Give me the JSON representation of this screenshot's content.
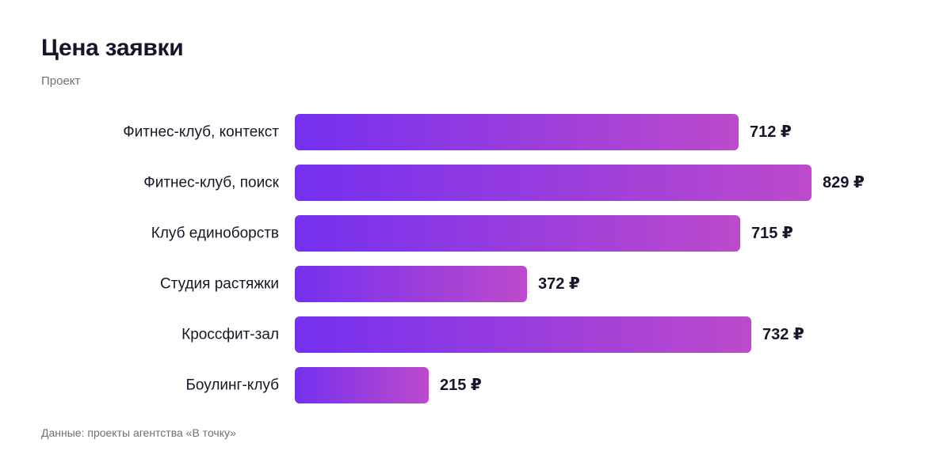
{
  "title": "Цена заявки",
  "subtitle": "Проект",
  "footnote": "Данные: проекты агентства «В точку»",
  "colors": {
    "bar_start": "#7530ef",
    "bar_end": "#bc4acb",
    "text": "#16162a",
    "muted": "#707070"
  },
  "chart_data": {
    "type": "bar",
    "orientation": "horizontal",
    "categories": [
      "Фитнес-клуб, контекст",
      "Фитнес-клуб, поиск",
      "Клуб единоборств",
      "Студия растяжки",
      "Кроссфит-зал",
      "Боулинг-клуб"
    ],
    "values": [
      712,
      829,
      715,
      372,
      732,
      215
    ],
    "value_labels": [
      "712 ₽",
      "829 ₽",
      "715 ₽",
      "372 ₽",
      "732 ₽",
      "215 ₽"
    ],
    "unit": "₽",
    "title": "Цена заявки",
    "xlabel": "",
    "ylabel": "Проект",
    "xlim": [
      0,
      829
    ],
    "grid": false,
    "legend": "none"
  }
}
